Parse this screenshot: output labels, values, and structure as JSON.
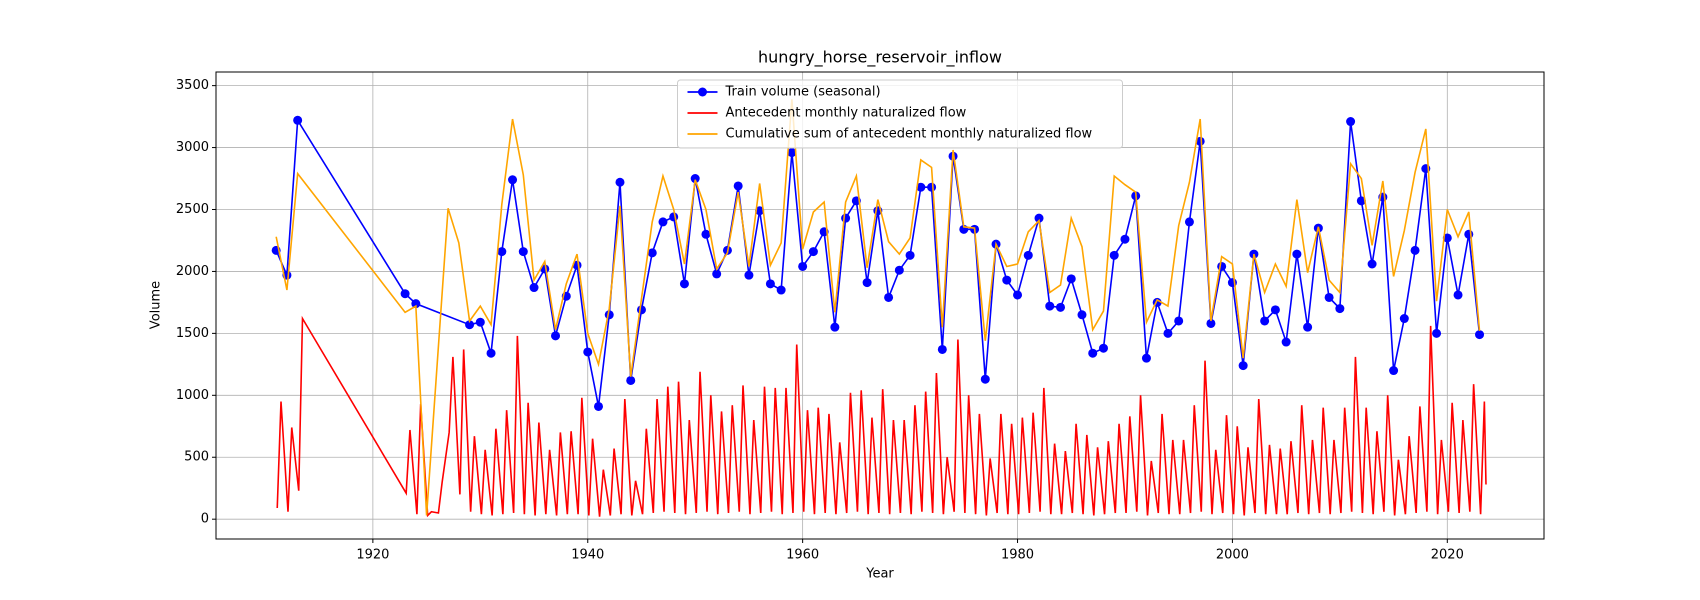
{
  "chart_data": {
    "type": "line",
    "title": "hungry_horse_reservoir_inflow",
    "xlabel": "Year",
    "ylabel": "Volume",
    "xlim": [
      1905.4,
      2029
    ],
    "ylim": [
      -160,
      3610
    ],
    "xticks": [
      1920,
      1940,
      1960,
      1980,
      2000,
      2020
    ],
    "yticks": [
      0,
      500,
      1000,
      1500,
      2000,
      2500,
      3000,
      3500
    ],
    "grid": true,
    "legend": "upper center",
    "series": [
      {
        "name": "Train volume (seasonal)",
        "color": "#0000ff",
        "marker": "o",
        "x": [
          1911,
          1912,
          1913,
          1923,
          1924,
          1929,
          1930,
          1931,
          1932,
          1933,
          1934,
          1935,
          1936,
          1937,
          1938,
          1939,
          1940,
          1941,
          1942,
          1943,
          1944,
          1945,
          1946,
          1947,
          1948,
          1949,
          1950,
          1951,
          1952,
          1953,
          1954,
          1955,
          1956,
          1957,
          1958,
          1959,
          1960,
          1961,
          1962,
          1963,
          1964,
          1965,
          1966,
          1967,
          1968,
          1969,
          1970,
          1971,
          1972,
          1973,
          1974,
          1975,
          1976,
          1977,
          1978,
          1979,
          1980,
          1981,
          1982,
          1983,
          1984,
          1985,
          1986,
          1987,
          1988,
          1989,
          1990,
          1991,
          1992,
          1993,
          1994,
          1995,
          1996,
          1997,
          1998,
          1999,
          2000,
          2001,
          2002,
          2003,
          2004,
          2005,
          2006,
          2007,
          2008,
          2009,
          2010,
          2011,
          2012,
          2013,
          2014,
          2015,
          2016,
          2017,
          2018,
          2019,
          2020,
          2021,
          2022,
          2023
        ],
        "values": [
          2170,
          1970,
          3220,
          1820,
          1740,
          1570,
          1590,
          1340,
          2160,
          2740,
          2160,
          1870,
          2020,
          1480,
          1800,
          2050,
          1350,
          910,
          1650,
          2720,
          1120,
          1690,
          2150,
          2400,
          2440,
          1900,
          2750,
          2300,
          1980,
          2170,
          2690,
          1970,
          2490,
          1900,
          1850,
          2960,
          2040,
          2160,
          2320,
          1550,
          2430,
          2570,
          1910,
          2490,
          1790,
          2010,
          2130,
          2680,
          2680,
          1370,
          2930,
          2340,
          2340,
          1130,
          2220,
          1930,
          1810,
          2130,
          2430,
          1720,
          1710,
          1940,
          1650,
          1340,
          1380,
          2130,
          2260,
          2610,
          1300,
          1750,
          1500,
          1600,
          2400,
          3050,
          1580,
          2040,
          1910,
          1240,
          2140,
          1600,
          1690,
          1430,
          2140,
          1550,
          2350,
          1790,
          1700,
          3210,
          2570,
          2060,
          2600,
          1200,
          1620,
          2170,
          2830,
          1500,
          2270,
          1810,
          2300,
          1490
        ]
      },
      {
        "name": "Antecedent monthly naturalized flow",
        "color": "#ff0000",
        "x": [
          1911.1,
          1911.45,
          1912.1,
          1912.45,
          1913.1,
          1913.45,
          1923.1,
          1923.45,
          1924.1,
          1924.45,
          1925.1,
          1925.45,
          1926.1,
          1926.45,
          1927.1,
          1927.45,
          1928.1,
          1928.45,
          1929.1,
          1929.45,
          1930.1,
          1930.45,
          1931.1,
          1931.45,
          1932.1,
          1932.45,
          1933.1,
          1933.45,
          1934.1,
          1934.45,
          1935.1,
          1935.45,
          1936.1,
          1936.45,
          1937.1,
          1937.45,
          1938.1,
          1938.45,
          1939.1,
          1939.45,
          1940.1,
          1940.45,
          1941.1,
          1941.45,
          1942.1,
          1942.45,
          1943.1,
          1943.45,
          1944.1,
          1944.45,
          1945.1,
          1945.45,
          1946.1,
          1946.45,
          1947.1,
          1947.45,
          1948.1,
          1948.45,
          1949.1,
          1949.45,
          1950.1,
          1950.45,
          1951.1,
          1951.45,
          1952.1,
          1952.45,
          1953.1,
          1953.45,
          1954.1,
          1954.45,
          1955.1,
          1955.45,
          1956.1,
          1956.45,
          1957.1,
          1957.45,
          1958.1,
          1958.45,
          1959.1,
          1959.45,
          1960.1,
          1960.45,
          1961.1,
          1961.45,
          1962.1,
          1962.45,
          1963.1,
          1963.45,
          1964.1,
          1964.45,
          1965.1,
          1965.45,
          1966.1,
          1966.45,
          1967.1,
          1967.45,
          1968.1,
          1968.45,
          1969.1,
          1969.45,
          1970.1,
          1970.45,
          1971.1,
          1971.45,
          1972.1,
          1972.45,
          1973.1,
          1973.45,
          1974.1,
          1974.45,
          1975.1,
          1975.45,
          1976.1,
          1976.45,
          1977.1,
          1977.45,
          1978.1,
          1978.45,
          1979.1,
          1979.45,
          1980.1,
          1980.45,
          1981.1,
          1981.45,
          1982.1,
          1982.45,
          1983.1,
          1983.45,
          1984.1,
          1984.45,
          1985.1,
          1985.45,
          1986.1,
          1986.45,
          1987.1,
          1987.45,
          1988.1,
          1988.45,
          1989.1,
          1989.45,
          1990.1,
          1990.45,
          1991.1,
          1991.45,
          1992.1,
          1992.45,
          1993.1,
          1993.45,
          1994.1,
          1994.45,
          1995.1,
          1995.45,
          1996.1,
          1996.45,
          1997.1,
          1997.45,
          1998.1,
          1998.45,
          1999.1,
          1999.45,
          2000.1,
          2000.45,
          2001.1,
          2001.45,
          2002.1,
          2002.45,
          2003.1,
          2003.45,
          2004.1,
          2004.45,
          2005.1,
          2005.45,
          2006.1,
          2006.45,
          2007.1,
          2007.45,
          2008.1,
          2008.45,
          2009.1,
          2009.45,
          2010.1,
          2010.45,
          2011.1,
          2011.45,
          2012.1,
          2012.45,
          2013.1,
          2013.45,
          2014.1,
          2014.45,
          2015.1,
          2015.45,
          2016.1,
          2016.45,
          2017.1,
          2017.45,
          2018.1,
          2018.45,
          2019.1,
          2019.45,
          2020.1,
          2020.45,
          2021.1,
          2021.45,
          2022.1,
          2022.45,
          2023.1,
          2023.45,
          2023.6
        ],
        "values": [
          90,
          950,
          60,
          740,
          230,
          1620,
          210,
          720,
          40,
          930,
          30,
          60,
          50,
          300,
          700,
          1310,
          200,
          1370,
          60,
          670,
          40,
          560,
          30,
          730,
          40,
          880,
          50,
          1480,
          40,
          940,
          30,
          780,
          40,
          560,
          30,
          700,
          40,
          710,
          40,
          980,
          30,
          650,
          20,
          400,
          30,
          570,
          40,
          970,
          30,
          310,
          40,
          730,
          50,
          970,
          60,
          1070,
          50,
          1110,
          40,
          800,
          50,
          1190,
          60,
          1000,
          40,
          870,
          50,
          920,
          60,
          1080,
          40,
          800,
          50,
          1070,
          60,
          1060,
          40,
          1060,
          50,
          1410,
          60,
          880,
          40,
          900,
          50,
          850,
          40,
          620,
          50,
          1020,
          60,
          1040,
          40,
          820,
          50,
          1050,
          40,
          800,
          50,
          800,
          40,
          920,
          60,
          1030,
          50,
          1180,
          40,
          500,
          60,
          1450,
          50,
          1000,
          40,
          850,
          30,
          490,
          50,
          850,
          40,
          770,
          40,
          820,
          50,
          860,
          60,
          1060,
          40,
          610,
          40,
          550,
          50,
          770,
          40,
          680,
          30,
          580,
          40,
          630,
          50,
          770,
          50,
          830,
          60,
          1000,
          30,
          470,
          50,
          850,
          40,
          640,
          40,
          640,
          50,
          920,
          60,
          1280,
          40,
          560,
          50,
          840,
          40,
          750,
          30,
          580,
          50,
          970,
          40,
          600,
          40,
          570,
          40,
          630,
          50,
          920,
          40,
          640,
          50,
          900,
          40,
          640,
          50,
          900,
          60,
          1310,
          50,
          900,
          40,
          710,
          60,
          1000,
          30,
          480,
          40,
          670,
          50,
          910,
          60,
          1560,
          40,
          640,
          60,
          940,
          50,
          800,
          60,
          1090,
          40,
          950,
          280
        ]
      },
      {
        "name": "Cumulative sum of antecedent monthly naturalized flow",
        "color": "#ffa500",
        "x": [
          1911,
          1912,
          1913,
          1923,
          1924,
          1925,
          1927,
          1928,
          1929,
          1930,
          1931,
          1932,
          1933,
          1934,
          1935,
          1936,
          1937,
          1938,
          1939,
          1940,
          1941,
          1942,
          1943,
          1944,
          1945,
          1946,
          1947,
          1948,
          1949,
          1950,
          1951,
          1952,
          1953,
          1954,
          1955,
          1956,
          1957,
          1958,
          1959,
          1960,
          1961,
          1962,
          1963,
          1964,
          1965,
          1966,
          1967,
          1968,
          1969,
          1970,
          1971,
          1972,
          1973,
          1974,
          1975,
          1976,
          1977,
          1978,
          1979,
          1980,
          1981,
          1982,
          1983,
          1984,
          1985,
          1986,
          1987,
          1988,
          1989,
          1990,
          1991,
          1992,
          1993,
          1994,
          1995,
          1996,
          1997,
          1998,
          1999,
          2000,
          2001,
          2002,
          2003,
          2004,
          2005,
          2006,
          2007,
          2008,
          2009,
          2010,
          2011,
          2012,
          2013,
          2014,
          2015,
          2016,
          2017,
          2018,
          2019,
          2020,
          2021,
          2022,
          2023
        ],
        "values": [
          2280,
          1850,
          2790,
          1670,
          1720,
          30,
          2510,
          2230,
          1600,
          1720,
          1570,
          2540,
          3230,
          2780,
          1930,
          2080,
          1530,
          1900,
          2140,
          1500,
          1250,
          1700,
          2530,
          1150,
          1780,
          2400,
          2770,
          2500,
          2060,
          2740,
          2500,
          2020,
          2150,
          2640,
          2040,
          2710,
          2050,
          2230,
          3390,
          2180,
          2480,
          2560,
          1670,
          2560,
          2770,
          2030,
          2580,
          2240,
          2140,
          2270,
          2900,
          2840,
          1550,
          2980,
          2360,
          2350,
          1440,
          2220,
          2040,
          2060,
          2320,
          2410,
          1830,
          1890,
          2430,
          2200,
          1530,
          1680,
          2770,
          2700,
          2640,
          1590,
          1770,
          1720,
          2370,
          2720,
          3230,
          1600,
          2120,
          2060,
          1300,
          2140,
          1830,
          2060,
          1880,
          2580,
          1990,
          2360,
          1930,
          1830,
          2870,
          2750,
          2210,
          2730,
          1960,
          2330,
          2800,
          3150,
          1760,
          2500,
          2280,
          2480,
          1520
        ]
      }
    ]
  }
}
